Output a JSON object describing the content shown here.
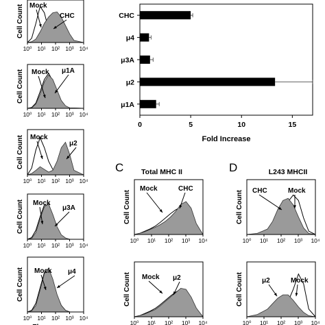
{
  "chart_data": [
    {
      "type": "area",
      "panel": "A",
      "row": 1,
      "ylabel": "Cell Count",
      "xscale": "log",
      "xlim": [
        1,
        10000
      ],
      "xticks": [
        "10⁰",
        "10¹",
        "10²",
        "10³",
        "10⁴"
      ],
      "series": [
        {
          "name": "Mock",
          "style": "outline",
          "x": [
            1,
            2,
            4,
            8,
            16,
            32,
            64,
            128,
            256,
            512,
            1024,
            2048,
            10000
          ],
          "values": [
            0,
            10,
            45,
            85,
            70,
            30,
            12,
            5,
            2,
            1,
            0,
            0,
            0
          ]
        },
        {
          "name": "CHC",
          "style": "filled",
          "x": [
            1,
            2,
            4,
            8,
            16,
            32,
            64,
            128,
            256,
            512,
            1024,
            2048,
            10000
          ],
          "values": [
            0,
            2,
            8,
            25,
            45,
            60,
            70,
            72,
            60,
            40,
            20,
            5,
            0
          ]
        }
      ],
      "annotations": [
        "Mock",
        "CHC"
      ]
    },
    {
      "type": "area",
      "panel": "A",
      "row": 2,
      "ylabel": "Cell Count",
      "xscale": "log",
      "xlim": [
        1,
        10000
      ],
      "xticks": [
        "10⁰",
        "10¹",
        "10²",
        "10³",
        "10⁴"
      ],
      "series": [
        {
          "name": "Mock",
          "style": "outline",
          "x": [
            1,
            2,
            4,
            8,
            16,
            32,
            64,
            128,
            256,
            512,
            1024,
            10000
          ],
          "values": [
            0,
            2,
            12,
            38,
            66,
            80,
            62,
            36,
            14,
            4,
            1,
            0
          ]
        },
        {
          "name": "μ1A",
          "style": "filled",
          "x": [
            1,
            2,
            4,
            8,
            16,
            32,
            64,
            128,
            256,
            512,
            1024,
            10000
          ],
          "values": [
            0,
            1,
            10,
            32,
            60,
            76,
            66,
            42,
            18,
            6,
            1,
            0
          ]
        }
      ],
      "annotations": [
        "Mock",
        "μ1A"
      ]
    },
    {
      "type": "area",
      "panel": "A",
      "row": 3,
      "ylabel": "Cell Count",
      "xscale": "log",
      "xlim": [
        1,
        10000
      ],
      "xticks": [
        "10⁰",
        "10¹",
        "10²",
        "10³",
        "10⁴"
      ],
      "series": [
        {
          "name": "Mock",
          "style": "outline",
          "x": [
            1,
            2,
            4,
            8,
            16,
            32,
            64,
            128,
            256,
            512,
            1024,
            10000
          ],
          "values": [
            0,
            15,
            55,
            82,
            60,
            30,
            12,
            5,
            2,
            1,
            0,
            0
          ]
        },
        {
          "name": "μ2",
          "style": "filled",
          "x": [
            1,
            2,
            4,
            8,
            16,
            32,
            64,
            128,
            256,
            512,
            1024,
            2048,
            10000
          ],
          "values": [
            0,
            3,
            10,
            18,
            12,
            6,
            10,
            30,
            60,
            72,
            45,
            10,
            0
          ]
        }
      ],
      "annotations": [
        "Mock",
        "μ2"
      ]
    },
    {
      "type": "area",
      "panel": "A",
      "row": 4,
      "ylabel": "Cell Count",
      "xscale": "log",
      "xlim": [
        1,
        10000
      ],
      "xticks": [
        "10⁰",
        "10¹",
        "10²",
        "10³",
        "10⁴"
      ],
      "series": [
        {
          "name": "Mock",
          "style": "outline",
          "x": [
            1,
            2,
            4,
            8,
            16,
            32,
            64,
            128,
            256,
            512,
            1024,
            10000
          ],
          "values": [
            0,
            4,
            20,
            50,
            76,
            74,
            50,
            24,
            8,
            2,
            0,
            0
          ]
        },
        {
          "name": "μ3A",
          "style": "filled",
          "x": [
            1,
            2,
            4,
            8,
            16,
            32,
            64,
            128,
            256,
            512,
            1024,
            10000
          ],
          "values": [
            0,
            2,
            15,
            45,
            72,
            78,
            55,
            28,
            10,
            3,
            0,
            0
          ]
        }
      ],
      "annotations": [
        "Mock",
        "μ3A"
      ]
    },
    {
      "type": "area",
      "panel": "A",
      "row": 5,
      "ylabel": "Cell Count",
      "xlabel": "Fluorescence",
      "xscale": "log",
      "xlim": [
        1,
        10000
      ],
      "xticks": [
        "10⁰",
        "10¹",
        "10²",
        "10³",
        "10⁴"
      ],
      "series": [
        {
          "name": "Mock",
          "style": "outline",
          "x": [
            1,
            2,
            4,
            8,
            16,
            32,
            64,
            128,
            256,
            512,
            1024,
            10000
          ],
          "values": [
            0,
            3,
            16,
            44,
            72,
            78,
            56,
            30,
            12,
            3,
            0,
            0
          ]
        },
        {
          "name": "μ4",
          "style": "filled",
          "x": [
            1,
            2,
            4,
            8,
            16,
            32,
            64,
            128,
            256,
            512,
            1024,
            10000
          ],
          "values": [
            0,
            2,
            12,
            40,
            70,
            80,
            60,
            32,
            12,
            3,
            0,
            0
          ]
        }
      ],
      "annotations": [
        "Mock",
        "μ4"
      ]
    },
    {
      "type": "bar",
      "panel": "B",
      "orientation": "horizontal",
      "categories": [
        "CHC",
        "μ4",
        "μ3A",
        "μ2",
        "μ1A"
      ],
      "values": [
        5.0,
        0.9,
        1.0,
        13.3,
        1.6
      ],
      "errors": [
        0.2,
        0.2,
        0.3,
        3.7,
        0.3
      ],
      "xlabel": "Fold Increase",
      "xlim": [
        0,
        17
      ],
      "xticks": [
        0,
        5,
        10,
        15
      ]
    },
    {
      "type": "area",
      "panel": "C",
      "row": 1,
      "title": "Total MHC II",
      "ylabel": "Cell Count",
      "xscale": "log",
      "xlim": [
        1,
        10000
      ],
      "xticks": [
        "10⁰",
        "10¹",
        "10²",
        "10³",
        "10⁴"
      ],
      "series": [
        {
          "name": "Mock",
          "style": "outline",
          "x": [
            1,
            2,
            4,
            8,
            16,
            32,
            64,
            128,
            256,
            512,
            1024,
            2048,
            4096,
            10000
          ],
          "values": [
            0,
            2,
            6,
            10,
            15,
            22,
            30,
            38,
            45,
            50,
            46,
            32,
            14,
            0
          ]
        },
        {
          "name": "CHC",
          "style": "filled",
          "x": [
            1,
            2,
            4,
            8,
            16,
            32,
            64,
            128,
            256,
            512,
            1024,
            2048,
            4096,
            10000
          ],
          "values": [
            0,
            2,
            5,
            9,
            13,
            18,
            24,
            32,
            42,
            55,
            60,
            48,
            20,
            0
          ]
        }
      ],
      "annotations": [
        "Mock",
        "CHC"
      ]
    },
    {
      "type": "area",
      "panel": "C",
      "row": 2,
      "ylabel": "Cell Count",
      "xscale": "log",
      "xlim": [
        1,
        10000
      ],
      "xticks": [
        "10⁰",
        "10¹",
        "10²",
        "10³",
        "10⁴"
      ],
      "series": [
        {
          "name": "Mock",
          "style": "outline",
          "x": [
            1,
            2,
            4,
            8,
            16,
            32,
            64,
            128,
            256,
            512,
            1024,
            2048,
            4096,
            10000
          ],
          "values": [
            0,
            2,
            6,
            10,
            15,
            22,
            30,
            38,
            45,
            50,
            46,
            32,
            14,
            0
          ]
        },
        {
          "name": "μ2",
          "style": "filled",
          "x": [
            1,
            2,
            4,
            8,
            16,
            32,
            64,
            128,
            256,
            512,
            1024,
            2048,
            4096,
            10000
          ],
          "values": [
            0,
            2,
            5,
            9,
            13,
            20,
            28,
            36,
            44,
            52,
            50,
            36,
            16,
            0
          ]
        }
      ],
      "annotations": [
        "Mock",
        "μ2"
      ]
    },
    {
      "type": "area",
      "panel": "D",
      "row": 1,
      "title": "L243 MHCII",
      "ylabel": "Cell Count",
      "xscale": "log",
      "xlim": [
        1,
        10000
      ],
      "xticks": [
        "10⁰",
        "10¹",
        "10²",
        "10³",
        "10⁴"
      ],
      "series": [
        {
          "name": "Mock",
          "style": "outline",
          "x": [
            1,
            4,
            16,
            32,
            64,
            128,
            256,
            512,
            1024,
            2048,
            4096,
            10000
          ],
          "values": [
            0,
            1,
            4,
            10,
            24,
            42,
            60,
            72,
            62,
            30,
            6,
            0
          ]
        },
        {
          "name": "CHC",
          "style": "filled",
          "x": [
            1,
            4,
            16,
            32,
            64,
            128,
            256,
            512,
            1024,
            2048,
            4096,
            10000
          ],
          "values": [
            0,
            2,
            10,
            24,
            46,
            62,
            66,
            54,
            32,
            12,
            2,
            0
          ]
        }
      ],
      "annotations": [
        "CHC",
        "Mock"
      ]
    },
    {
      "type": "area",
      "panel": "D",
      "row": 2,
      "ylabel": "Cell Count",
      "xscale": "log",
      "xlim": [
        1,
        10000
      ],
      "xticks": [
        "10⁰",
        "10¹",
        "10²",
        "10³",
        "10⁴"
      ],
      "series": [
        {
          "name": "Mock",
          "style": "outline",
          "x": [
            1,
            4,
            16,
            32,
            64,
            128,
            256,
            512,
            1024,
            2048,
            4096,
            10000
          ],
          "values": [
            0,
            1,
            3,
            6,
            10,
            16,
            28,
            50,
            78,
            60,
            14,
            0
          ]
        },
        {
          "name": "μ2",
          "style": "filled",
          "x": [
            1,
            4,
            16,
            32,
            64,
            128,
            256,
            512,
            1024,
            2048,
            4096,
            10000
          ],
          "values": [
            0,
            4,
            14,
            24,
            34,
            40,
            40,
            30,
            18,
            8,
            2,
            0
          ]
        }
      ],
      "annotations": [
        "μ2",
        "Mock"
      ]
    }
  ],
  "panel_letters": {
    "c": "C",
    "d": "D"
  },
  "colors": {
    "fill": "#9a9a9a",
    "bar": "#000000",
    "axis": "#000000"
  }
}
